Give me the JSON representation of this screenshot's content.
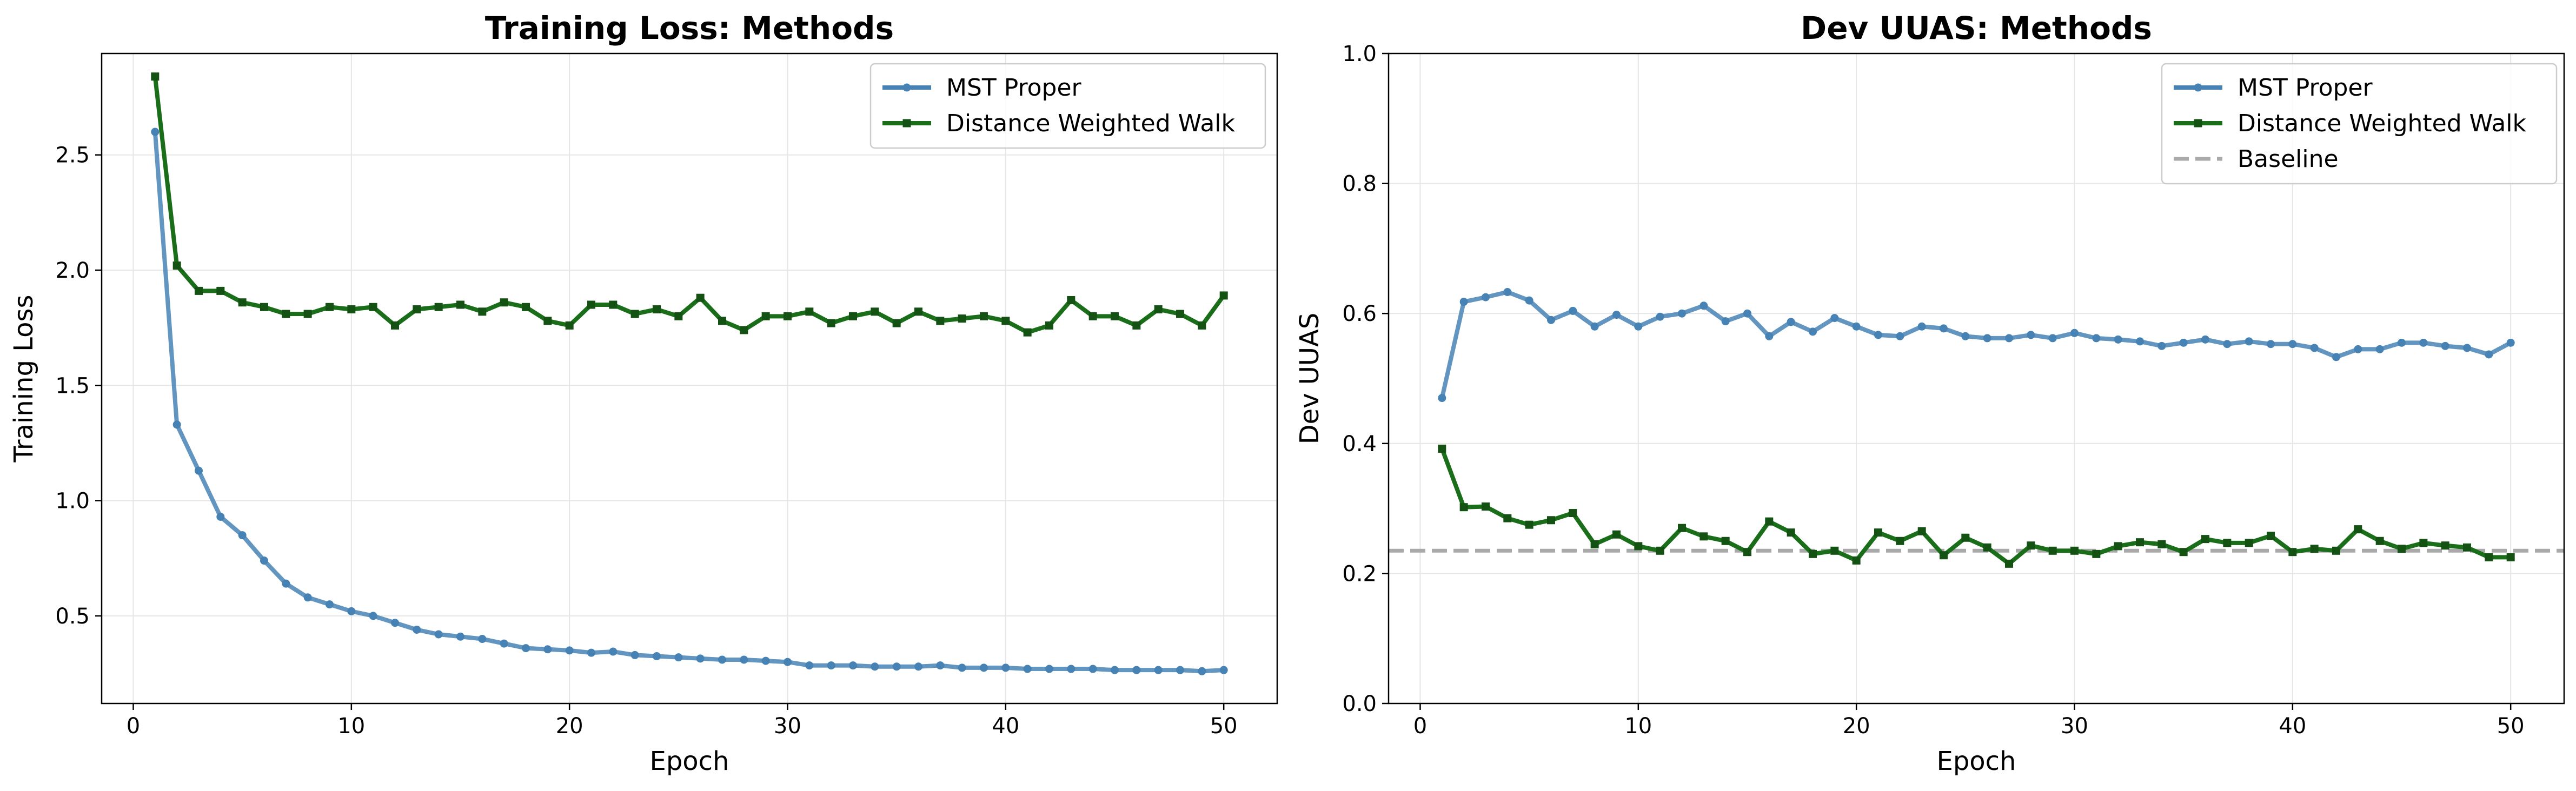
{
  "figure": {
    "background": "#ffffff"
  },
  "chart_data": [
    {
      "type": "line",
      "title": "Training Loss: Methods",
      "xlabel": "Epoch",
      "ylabel": "Training Loss",
      "xlim": [
        -1.45,
        52.45
      ],
      "ylim": [
        0.12,
        2.94
      ],
      "xticks": [
        0,
        10,
        20,
        30,
        40,
        50
      ],
      "xtick_labels": [
        "0",
        "10",
        "20",
        "30",
        "40",
        "50"
      ],
      "yticks": [
        0.5,
        1.0,
        1.5,
        2.0,
        2.5
      ],
      "ytick_labels": [
        "0.5",
        "1.0",
        "1.5",
        "2.0",
        "2.5"
      ],
      "grid": true,
      "legend_position": "top-right",
      "x": [
        1,
        2,
        3,
        4,
        5,
        6,
        7,
        8,
        9,
        10,
        11,
        12,
        13,
        14,
        15,
        16,
        17,
        18,
        19,
        20,
        21,
        22,
        23,
        24,
        25,
        26,
        27,
        28,
        29,
        30,
        31,
        32,
        33,
        34,
        35,
        36,
        37,
        38,
        39,
        40,
        41,
        42,
        43,
        44,
        45,
        46,
        47,
        48,
        49,
        50
      ],
      "series": [
        {
          "name": "MST Proper",
          "color": "#4682b4",
          "marker": "circle",
          "values": [
            2.6,
            1.33,
            1.13,
            0.93,
            0.85,
            0.74,
            0.64,
            0.58,
            0.55,
            0.52,
            0.5,
            0.47,
            0.44,
            0.42,
            0.41,
            0.4,
            0.38,
            0.36,
            0.355,
            0.35,
            0.34,
            0.345,
            0.33,
            0.325,
            0.32,
            0.315,
            0.31,
            0.31,
            0.305,
            0.3,
            0.285,
            0.285,
            0.285,
            0.28,
            0.28,
            0.28,
            0.285,
            0.275,
            0.275,
            0.275,
            0.27,
            0.27,
            0.27,
            0.27,
            0.265,
            0.265,
            0.265,
            0.265,
            0.26,
            0.265
          ]
        },
        {
          "name": "Distance Weighted Walk",
          "color": "#1a6e1a",
          "marker": "square",
          "values": [
            2.84,
            2.02,
            1.91,
            1.91,
            1.86,
            1.84,
            1.81,
            1.81,
            1.84,
            1.83,
            1.84,
            1.76,
            1.83,
            1.84,
            1.85,
            1.82,
            1.86,
            1.84,
            1.78,
            1.76,
            1.85,
            1.85,
            1.81,
            1.83,
            1.8,
            1.88,
            1.78,
            1.74,
            1.8,
            1.8,
            1.82,
            1.77,
            1.8,
            1.82,
            1.77,
            1.82,
            1.78,
            1.79,
            1.8,
            1.78,
            1.73,
            1.76,
            1.87,
            1.8,
            1.8,
            1.76,
            1.83,
            1.81,
            1.76,
            1.89
          ]
        }
      ]
    },
    {
      "type": "line",
      "title": "Dev UUAS: Methods",
      "xlabel": "Epoch",
      "ylabel": "Dev UUAS",
      "xlim": [
        -1.45,
        52.45
      ],
      "ylim": [
        0.0,
        1.0
      ],
      "xticks": [
        0,
        10,
        20,
        30,
        40,
        50
      ],
      "xtick_labels": [
        "0",
        "10",
        "20",
        "30",
        "40",
        "50"
      ],
      "yticks": [
        0.0,
        0.2,
        0.4,
        0.6,
        0.8,
        1.0
      ],
      "ytick_labels": [
        "0.0",
        "0.2",
        "0.4",
        "0.6",
        "0.8",
        "1.0"
      ],
      "grid": true,
      "legend_position": "top-right",
      "x": [
        1,
        2,
        3,
        4,
        5,
        6,
        7,
        8,
        9,
        10,
        11,
        12,
        13,
        14,
        15,
        16,
        17,
        18,
        19,
        20,
        21,
        22,
        23,
        24,
        25,
        26,
        27,
        28,
        29,
        30,
        31,
        32,
        33,
        34,
        35,
        36,
        37,
        38,
        39,
        40,
        41,
        42,
        43,
        44,
        45,
        46,
        47,
        48,
        49,
        50
      ],
      "series": [
        {
          "name": "MST Proper",
          "color": "#4682b4",
          "marker": "circle",
          "values": [
            0.47,
            0.618,
            0.625,
            0.633,
            0.62,
            0.59,
            0.604,
            0.58,
            0.598,
            0.58,
            0.595,
            0.6,
            0.612,
            0.588,
            0.6,
            0.565,
            0.587,
            0.572,
            0.593,
            0.58,
            0.567,
            0.565,
            0.58,
            0.577,
            0.565,
            0.562,
            0.562,
            0.567,
            0.562,
            0.57,
            0.562,
            0.56,
            0.557,
            0.55,
            0.555,
            0.56,
            0.553,
            0.557,
            0.553,
            0.553,
            0.547,
            0.533,
            0.545,
            0.545,
            0.555,
            0.555,
            0.55,
            0.547,
            0.537,
            0.555
          ]
        },
        {
          "name": "Distance Weighted Walk",
          "color": "#1a6e1a",
          "marker": "square",
          "values": [
            0.392,
            0.302,
            0.303,
            0.285,
            0.275,
            0.282,
            0.293,
            0.245,
            0.26,
            0.242,
            0.235,
            0.27,
            0.257,
            0.25,
            0.233,
            0.28,
            0.263,
            0.23,
            0.235,
            0.22,
            0.263,
            0.25,
            0.265,
            0.228,
            0.255,
            0.24,
            0.215,
            0.243,
            0.235,
            0.235,
            0.23,
            0.242,
            0.248,
            0.245,
            0.233,
            0.253,
            0.247,
            0.247,
            0.258,
            0.233,
            0.238,
            0.235,
            0.268,
            0.25,
            0.238,
            0.247,
            0.243,
            0.24,
            0.225,
            0.225
          ]
        }
      ],
      "reference_lines": [
        {
          "name": "Baseline",
          "y": 0.235,
          "color": "#a9a9a9",
          "style": "dashed"
        }
      ]
    }
  ]
}
